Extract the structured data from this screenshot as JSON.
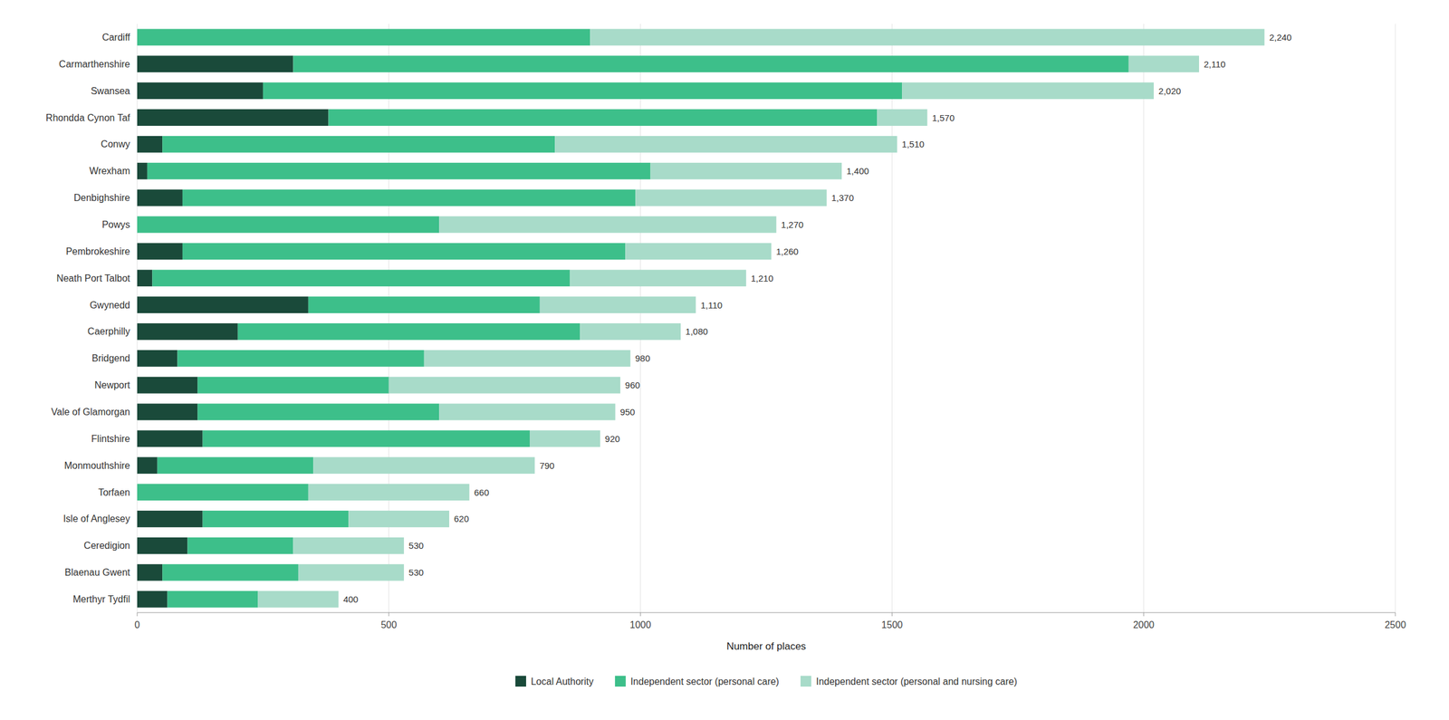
{
  "chart_data": {
    "type": "bar",
    "orientation": "horizontal",
    "stacked": true,
    "grid": true,
    "legend": "bottom",
    "x_label": "Number of places",
    "categories": [
      "Cardiff",
      "Carmarthenshire",
      "Swansea",
      "Rhondda Cynon Taf",
      "Conwy",
      "Wrexham",
      "Denbighshire",
      "Powys",
      "Pembrokeshire",
      "Neath Port Talbot",
      "Gwynedd",
      "Caerphilly",
      "Bridgend",
      "Newport",
      "Vale of Glamorgan",
      "Flintshire",
      "Monmouthshire",
      "Torfaen",
      "Isle of Anglesey",
      "Ceredigion",
      "Blaenau Gwent",
      "Merthyr Tydfil"
    ],
    "series": [
      {
        "name": "Local Authority",
        "color": "#1a4a3a",
        "values": [
          0,
          310,
          250,
          380,
          50,
          20,
          90,
          0,
          90,
          30,
          340,
          200,
          80,
          120,
          120,
          130,
          40,
          0,
          130,
          100,
          50,
          60
        ]
      },
      {
        "name": "Independent sector (personal care)",
        "color": "#3dbf8a",
        "values": [
          900,
          1660,
          1270,
          1090,
          780,
          1000,
          900,
          600,
          880,
          830,
          460,
          680,
          490,
          380,
          480,
          650,
          310,
          340,
          290,
          210,
          270,
          180
        ]
      },
      {
        "name": "Independent sector (personal and nursing care)",
        "color": "#a8dbc9",
        "values": [
          1340,
          140,
          500,
          100,
          680,
          380,
          380,
          670,
          290,
          350,
          310,
          200,
          410,
          460,
          350,
          140,
          440,
          320,
          200,
          220,
          210,
          160
        ]
      }
    ],
    "totals": {
      "values": [
        2240,
        2110,
        2020,
        1570,
        1510,
        1400,
        1370,
        1270,
        1260,
        1210,
        1110,
        1080,
        980,
        960,
        950,
        920,
        790,
        660,
        620,
        530,
        530,
        400
      ],
      "value_labels": [
        "2,240",
        "2,110",
        "2,020",
        "1,570",
        "1,510",
        "1,400",
        "1,370",
        "1,270",
        "1,260",
        "1,210",
        "1,110",
        "1,080",
        "980",
        "960",
        "950",
        "920",
        "790",
        "660",
        "620",
        "530",
        "530",
        "400"
      ]
    },
    "xlim": [
      0,
      2500
    ],
    "xticks": [
      0,
      500,
      1000,
      1500,
      2000,
      2500
    ]
  }
}
